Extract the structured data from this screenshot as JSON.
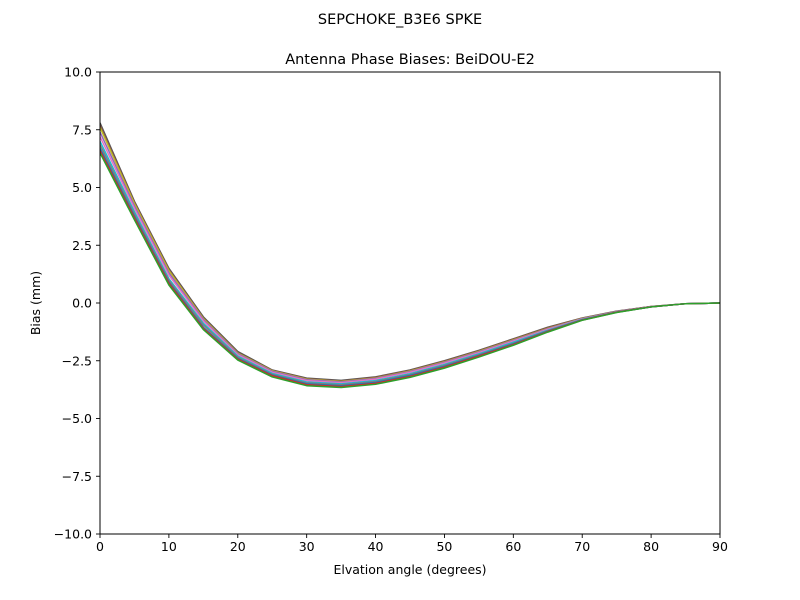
{
  "chart_data": {
    "type": "line",
    "suptitle": "SEPCHOKE_B3E6   SPKE",
    "title": "Antenna Phase Biases: BeiDOU-E2",
    "xlabel": "Elvation angle (degrees)",
    "ylabel": "Bias (mm)",
    "xlim": [
      0,
      90
    ],
    "ylim": [
      -10,
      10
    ],
    "xticks": [
      0,
      10,
      20,
      30,
      40,
      50,
      60,
      70,
      80,
      90
    ],
    "yticks": [
      -10.0,
      -7.5,
      -5.0,
      -2.5,
      0.0,
      2.5,
      5.0,
      7.5,
      10.0
    ],
    "ytick_labels": [
      "−10.0",
      "−7.5",
      "−5.0",
      "−2.5",
      "0.0",
      "2.5",
      "5.0",
      "7.5",
      "10.0"
    ],
    "grid": false,
    "x": [
      0,
      5,
      10,
      15,
      20,
      25,
      30,
      35,
      40,
      45,
      50,
      55,
      60,
      65,
      70,
      75,
      80,
      85,
      90
    ],
    "series": [
      {
        "color": "#555555",
        "values": [
          7.8,
          4.4,
          1.5,
          -0.6,
          -2.1,
          -2.9,
          -3.25,
          -3.35,
          -3.2,
          -2.9,
          -2.5,
          -2.05,
          -1.55,
          -1.05,
          -0.65,
          -0.35,
          -0.15,
          -0.03,
          0.0
        ]
      },
      {
        "color": "#8c564b",
        "values": [
          7.7,
          4.35,
          1.45,
          -0.65,
          -2.15,
          -2.92,
          -3.28,
          -3.38,
          -3.22,
          -2.92,
          -2.52,
          -2.07,
          -1.57,
          -1.07,
          -0.66,
          -0.36,
          -0.15,
          -0.03,
          0.0
        ]
      },
      {
        "color": "#bcbd22",
        "values": [
          7.6,
          4.3,
          1.4,
          -0.68,
          -2.17,
          -2.94,
          -3.3,
          -3.4,
          -3.25,
          -2.95,
          -2.55,
          -2.1,
          -1.6,
          -1.1,
          -0.67,
          -0.37,
          -0.16,
          -0.03,
          0.0
        ]
      },
      {
        "color": "#9467bd",
        "values": [
          7.4,
          4.2,
          1.3,
          -0.72,
          -2.2,
          -2.96,
          -3.32,
          -3.42,
          -3.27,
          -2.97,
          -2.57,
          -2.12,
          -1.62,
          -1.12,
          -0.68,
          -0.37,
          -0.16,
          -0.03,
          0.0
        ]
      },
      {
        "color": "#e377c2",
        "values": [
          7.2,
          4.1,
          1.2,
          -0.78,
          -2.24,
          -3.0,
          -3.36,
          -3.45,
          -3.3,
          -3.0,
          -2.6,
          -2.15,
          -1.65,
          -1.14,
          -0.69,
          -0.38,
          -0.16,
          -0.03,
          0.0
        ]
      },
      {
        "color": "#17becf",
        "values": [
          7.0,
          3.95,
          1.05,
          -0.88,
          -2.3,
          -3.05,
          -3.42,
          -3.5,
          -3.36,
          -3.06,
          -2.66,
          -2.2,
          -1.7,
          -1.18,
          -0.71,
          -0.39,
          -0.17,
          -0.03,
          0.0
        ]
      },
      {
        "color": "#7f7f7f",
        "values": [
          6.85,
          3.85,
          0.98,
          -0.95,
          -2.35,
          -3.09,
          -3.46,
          -3.54,
          -3.4,
          -3.1,
          -2.7,
          -2.24,
          -1.74,
          -1.2,
          -0.72,
          -0.39,
          -0.17,
          -0.03,
          0.0
        ]
      },
      {
        "color": "#1f77b4",
        "values": [
          6.7,
          3.75,
          0.9,
          -1.05,
          -2.4,
          -3.12,
          -3.5,
          -3.58,
          -3.44,
          -3.14,
          -2.74,
          -2.27,
          -1.77,
          -1.22,
          -0.73,
          -0.4,
          -0.17,
          -0.03,
          0.0
        ]
      },
      {
        "color": "#d62728",
        "values": [
          6.6,
          3.68,
          0.85,
          -1.1,
          -2.43,
          -3.15,
          -3.54,
          -3.62,
          -3.48,
          -3.18,
          -2.78,
          -2.3,
          -1.8,
          -1.24,
          -0.74,
          -0.4,
          -0.17,
          -0.03,
          0.0
        ]
      },
      {
        "color": "#2ca02c",
        "values": [
          6.5,
          3.6,
          0.78,
          -1.15,
          -2.47,
          -3.2,
          -3.58,
          -3.66,
          -3.52,
          -3.22,
          -2.82,
          -2.34,
          -1.83,
          -1.26,
          -0.75,
          -0.41,
          -0.17,
          -0.03,
          0.0
        ]
      }
    ]
  }
}
